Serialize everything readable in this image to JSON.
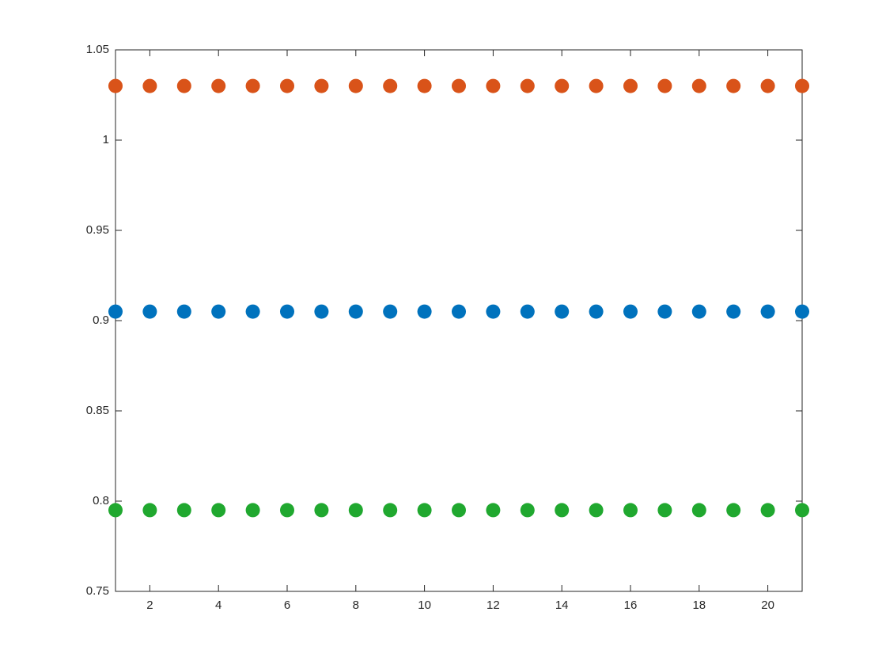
{
  "chart_data": {
    "type": "scatter",
    "x": [
      1,
      2,
      3,
      4,
      5,
      6,
      7,
      8,
      9,
      10,
      11,
      12,
      13,
      14,
      15,
      16,
      17,
      18,
      19,
      20,
      21
    ],
    "series": [
      {
        "color": "#d95319",
        "values": [
          1.03,
          1.03,
          1.03,
          1.03,
          1.03,
          1.03,
          1.03,
          1.03,
          1.03,
          1.03,
          1.03,
          1.03,
          1.03,
          1.03,
          1.03,
          1.03,
          1.03,
          1.03,
          1.03,
          1.03,
          1.03
        ]
      },
      {
        "color": "#0072bd",
        "values": [
          0.905,
          0.905,
          0.905,
          0.905,
          0.905,
          0.905,
          0.905,
          0.905,
          0.905,
          0.905,
          0.905,
          0.905,
          0.905,
          0.905,
          0.905,
          0.905,
          0.905,
          0.905,
          0.905,
          0.905,
          0.905
        ]
      },
      {
        "color": "#20a82f",
        "values": [
          0.795,
          0.795,
          0.795,
          0.795,
          0.795,
          0.795,
          0.795,
          0.795,
          0.795,
          0.795,
          0.795,
          0.795,
          0.795,
          0.795,
          0.795,
          0.795,
          0.795,
          0.795,
          0.795,
          0.795,
          0.795
        ]
      }
    ],
    "xlim": [
      1,
      21
    ],
    "xticks": [
      2,
      4,
      6,
      8,
      10,
      12,
      14,
      16,
      18,
      20
    ],
    "ylim": [
      0.75,
      1.05
    ],
    "yticks": [
      0.75,
      0.8,
      0.85,
      0.9,
      0.95,
      1,
      1.05
    ],
    "grid": false
  }
}
